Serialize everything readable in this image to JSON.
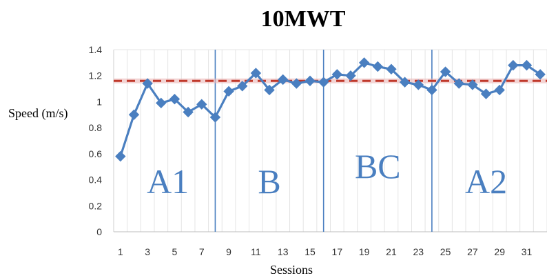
{
  "chart_data": {
    "type": "line",
    "title": "10MWT",
    "xlabel": "Sessions",
    "ylabel": "Speed (m/s)",
    "ylim": [
      0,
      1.4
    ],
    "yticks": [
      "0",
      "0.2",
      "0.4",
      "0.6",
      "0.8",
      "1",
      "1.2",
      "1.4"
    ],
    "xticks": [
      "1",
      "3",
      "5",
      "7",
      "9",
      "11",
      "13",
      "15",
      "17",
      "19",
      "21",
      "23",
      "25",
      "27",
      "29",
      "31"
    ],
    "grid": "vertical",
    "x": [
      1,
      2,
      3,
      4,
      5,
      6,
      7,
      8,
      9,
      10,
      11,
      12,
      13,
      14,
      15,
      16,
      17,
      18,
      19,
      20,
      21,
      22,
      23,
      24,
      25,
      26,
      27,
      28,
      29,
      30,
      31,
      32
    ],
    "series": [
      {
        "color": "#4a7fc0",
        "values": [
          0.58,
          0.9,
          1.14,
          0.99,
          1.02,
          0.92,
          0.98,
          0.88,
          1.08,
          1.12,
          1.22,
          1.09,
          1.17,
          1.14,
          1.16,
          1.15,
          1.21,
          1.2,
          1.3,
          1.27,
          1.25,
          1.15,
          1.13,
          1.09,
          1.23,
          1.14,
          1.13,
          1.06,
          1.09,
          1.28,
          1.28,
          1.21
        ]
      }
    ],
    "reference_line": {
      "value": 1.16,
      "color": "#c0392b",
      "style": "dashed"
    },
    "phases": [
      {
        "label": "A1",
        "start": 1,
        "end": 8
      },
      {
        "label": "B",
        "start": 8,
        "end": 16
      },
      {
        "label": "BC",
        "start": 16,
        "end": 24
      },
      {
        "label": "A2",
        "start": 24,
        "end": 32
      }
    ],
    "phase_dividers": [
      8,
      16,
      24
    ],
    "phase_color": "#4a7fc0"
  }
}
